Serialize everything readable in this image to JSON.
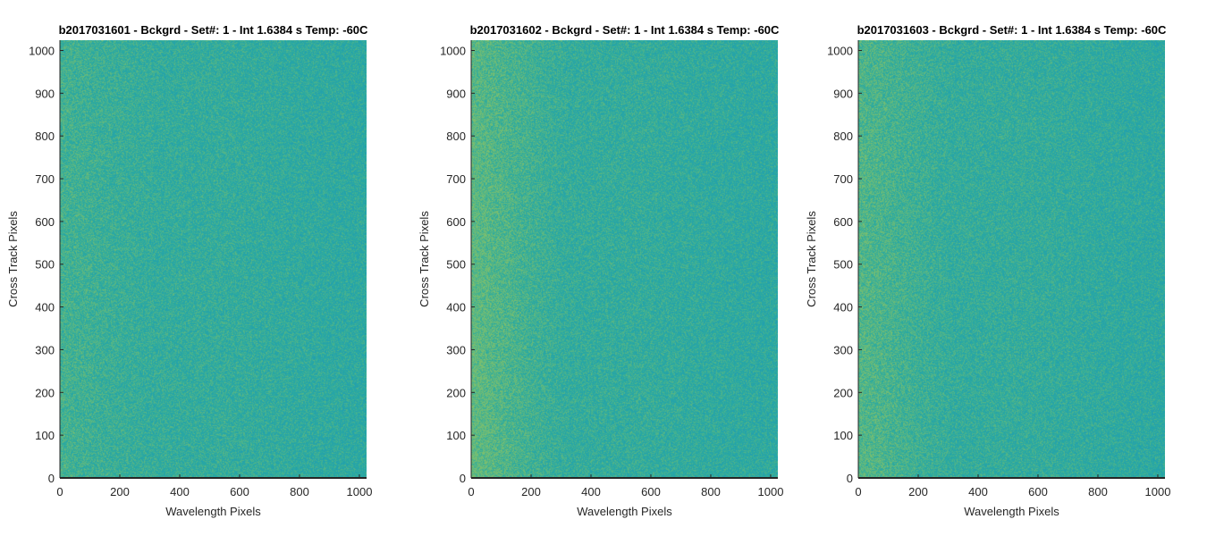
{
  "chart_data": [
    {
      "type": "heatmap",
      "title": "b2017031601 - Bckgrd - Set#: 1 - Int 1.6384 s Temp: -60C",
      "xlabel": "Wavelength Pixels",
      "ylabel": "Cross Track Pixels",
      "xlim": [
        0,
        1024
      ],
      "ylim": [
        0,
        1024
      ],
      "xticks": [
        0,
        200,
        400,
        600,
        800,
        1000
      ],
      "yticks": [
        0,
        100,
        200,
        300,
        400,
        500,
        600,
        700,
        800,
        900,
        1000
      ],
      "colormap": "parula",
      "description_of_values": "noise field",
      "left_edge_warmth": 0.25,
      "base_color": "#2cab9f",
      "warm_color": "#7cbf6e",
      "cool_color": "#1e9bb6"
    },
    {
      "type": "heatmap",
      "title": "b2017031602 - Bckgrd - Set#: 1 - Int 1.6384 s Temp: -60C",
      "xlabel": "Wavelength Pixels",
      "ylabel": "Cross Track Pixels",
      "xlim": [
        0,
        1024
      ],
      "ylim": [
        0,
        1024
      ],
      "xticks": [
        0,
        200,
        400,
        600,
        800,
        1000
      ],
      "yticks": [
        0,
        100,
        200,
        300,
        400,
        500,
        600,
        700,
        800,
        900,
        1000
      ],
      "colormap": "parula",
      "description_of_values": "noise field",
      "left_edge_warmth": 0.6,
      "base_color": "#2cab9f",
      "warm_color": "#7cbf6e",
      "cool_color": "#1e9bb6"
    },
    {
      "type": "heatmap",
      "title": "b2017031603 - Bckgrd - Set#: 1 - Int 1.6384 s Temp: -60C",
      "xlabel": "Wavelength Pixels",
      "ylabel": "Cross Track Pixels",
      "xlim": [
        0,
        1024
      ],
      "ylim": [
        0,
        1024
      ],
      "xticks": [
        0,
        200,
        400,
        600,
        800,
        1000
      ],
      "yticks": [
        0,
        100,
        200,
        300,
        400,
        500,
        600,
        700,
        800,
        900,
        1000
      ],
      "colormap": "parula",
      "description_of_values": "noise field",
      "left_edge_warmth": 0.45,
      "base_color": "#2cab9f",
      "warm_color": "#7cbf6e",
      "cool_color": "#1e9bb6"
    }
  ]
}
